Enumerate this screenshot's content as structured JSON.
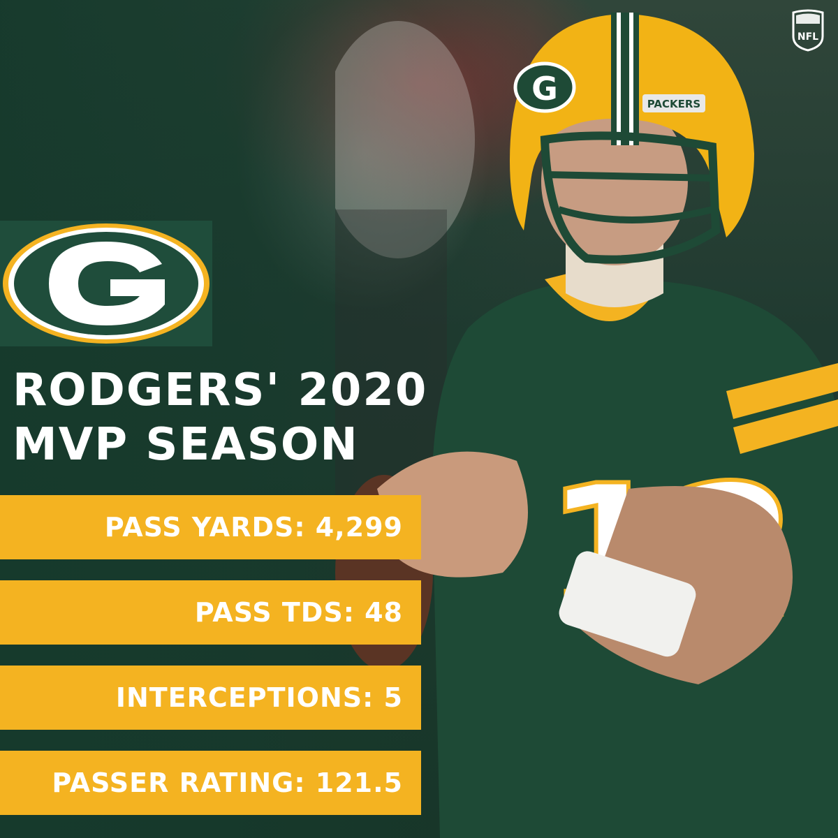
{
  "headline": {
    "line1": "RODGERS' 2020",
    "line2": "MVP SEASON"
  },
  "stats": [
    {
      "text": "PASS YARDS: 4,299"
    },
    {
      "text": "PASS TDS: 48"
    },
    {
      "text": "INTERCEPTIONS: 5"
    },
    {
      "text": "PASSER RATING: 121.5"
    }
  ],
  "photo": {
    "helmet_text": "PACKERS",
    "jersey_number": "12"
  },
  "logos": {
    "team": "green-bay-g-logo",
    "league": "NFL"
  },
  "colors": {
    "packers_green": "#1f4d3b",
    "packers_gold": "#f4b321",
    "white": "#ffffff"
  }
}
